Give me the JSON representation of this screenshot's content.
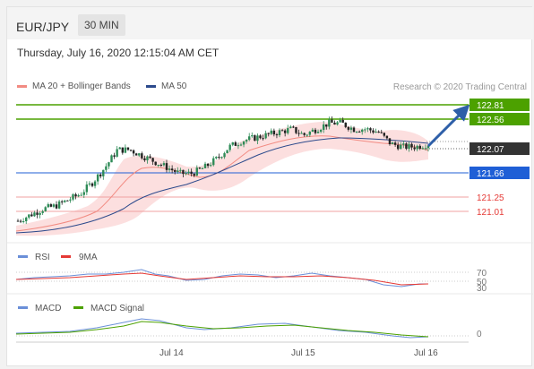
{
  "header": {
    "pair": "EUR/JPY",
    "interval": "30 MIN"
  },
  "datetime": "Thursday, July 16, 2020 12:15:04 AM CET",
  "legend": {
    "ma_bollinger": {
      "label": "MA 20 + Bollinger Bands",
      "color": "#f28b82"
    },
    "ma50": {
      "label": "MA 50",
      "color": "#2c4a8c"
    }
  },
  "research": "Research © 2020 Trading Central",
  "levels": {
    "r2": {
      "label": "122.81",
      "color": "#4ca100"
    },
    "r1": {
      "label": "122.56",
      "color": "#4ca100"
    },
    "last": {
      "label": "122.07",
      "color": "#333333"
    },
    "pivot": {
      "label": "121.66",
      "color": "#1f5fd6"
    },
    "s1": {
      "label": "121.25",
      "color": "#e53935"
    },
    "s2": {
      "label": "121.01",
      "color": "#e53935"
    }
  },
  "rsi": {
    "legend": "RSI",
    "signal_legend": "9MA",
    "levels": [
      "70",
      "50",
      "30"
    ]
  },
  "macd": {
    "legend": "MACD",
    "signal_legend": "MACD Signal",
    "zero": "0"
  },
  "xaxis": [
    "Jul 14",
    "Jul 15",
    "Jul 16"
  ],
  "chart_data": {
    "type": "candlestick",
    "price_levels": [
      122.81,
      122.56,
      122.07,
      121.66,
      121.25,
      121.01
    ],
    "last_price": 122.07,
    "x_ticks": [
      "Jul 14",
      "Jul 15",
      "Jul 16"
    ],
    "close_path": [
      120.85,
      120.95,
      121.05,
      121.1,
      121.2,
      121.3,
      121.5,
      121.75,
      122.05,
      122.05,
      121.95,
      121.85,
      121.75,
      121.65,
      121.65,
      121.75,
      121.9,
      122.1,
      122.2,
      122.25,
      122.3,
      122.35,
      122.4,
      122.3,
      122.4,
      122.5,
      122.5,
      122.4,
      122.4,
      122.35,
      122.15,
      122.1,
      122.1,
      122.15
    ],
    "rsi_levels": [
      70,
      50,
      30
    ],
    "macd_zero": 0
  }
}
